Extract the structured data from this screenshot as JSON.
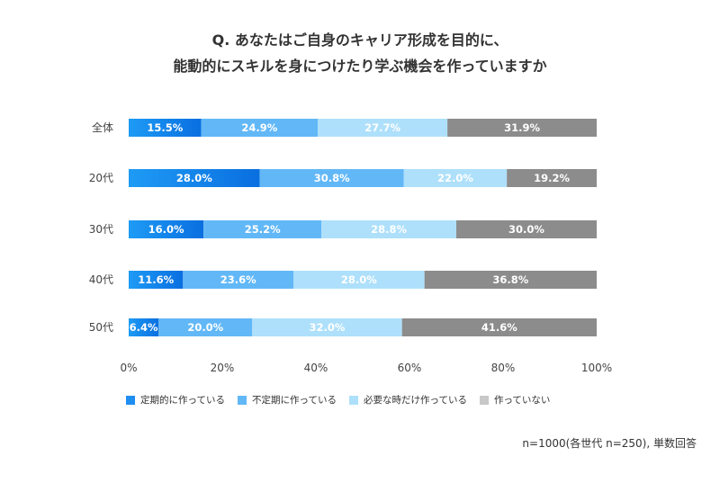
{
  "title_line1": "Q. あなたはご自身のキャリア形成を目的に、",
  "title_line2": "能動的にスキルを身につけたり学ぶ機会を作っていますか",
  "note": "n=1000(各世代 n=250), 単数回答",
  "chart_data": {
    "type": "bar",
    "orientation": "horizontal",
    "stacked": true,
    "categories": [
      "全体",
      "20代",
      "30代",
      "40代",
      "50代"
    ],
    "series": [
      {
        "name": "定期的に作っている",
        "values": [
          15.5,
          28.0,
          16.0,
          11.6,
          6.4
        ],
        "labels": [
          "15.5%",
          "28.0%",
          "16.0%",
          "11.6%",
          "6.4%"
        ],
        "color": "#1f8ef1",
        "color2": "#0a6fe0"
      },
      {
        "name": "不定期に作っている",
        "values": [
          24.9,
          30.8,
          25.2,
          23.6,
          20.0
        ],
        "labels": [
          "24.9%",
          "30.8%",
          "25.2%",
          "23.6%",
          "20.0%"
        ],
        "color": "#62b8f7"
      },
      {
        "name": "必要な時だけ作っている",
        "values": [
          27.7,
          22.0,
          28.8,
          28.0,
          32.0
        ],
        "labels": [
          "27.7%",
          "22.0%",
          "28.8%",
          "28.0%",
          "32.0%"
        ],
        "color": "#aee0fb"
      },
      {
        "name": "作っていない",
        "values": [
          31.9,
          19.2,
          30.0,
          36.8,
          41.6
        ],
        "labels": [
          "31.9%",
          "19.2%",
          "30.0%",
          "36.8%",
          "41.6%"
        ],
        "color": "#8c8c8c"
      }
    ],
    "xticks": [
      "0%",
      "20%",
      "40%",
      "60%",
      "80%",
      "100%"
    ],
    "xlim": [
      0,
      100
    ],
    "legend_position": "bottom-left",
    "grid": false
  }
}
